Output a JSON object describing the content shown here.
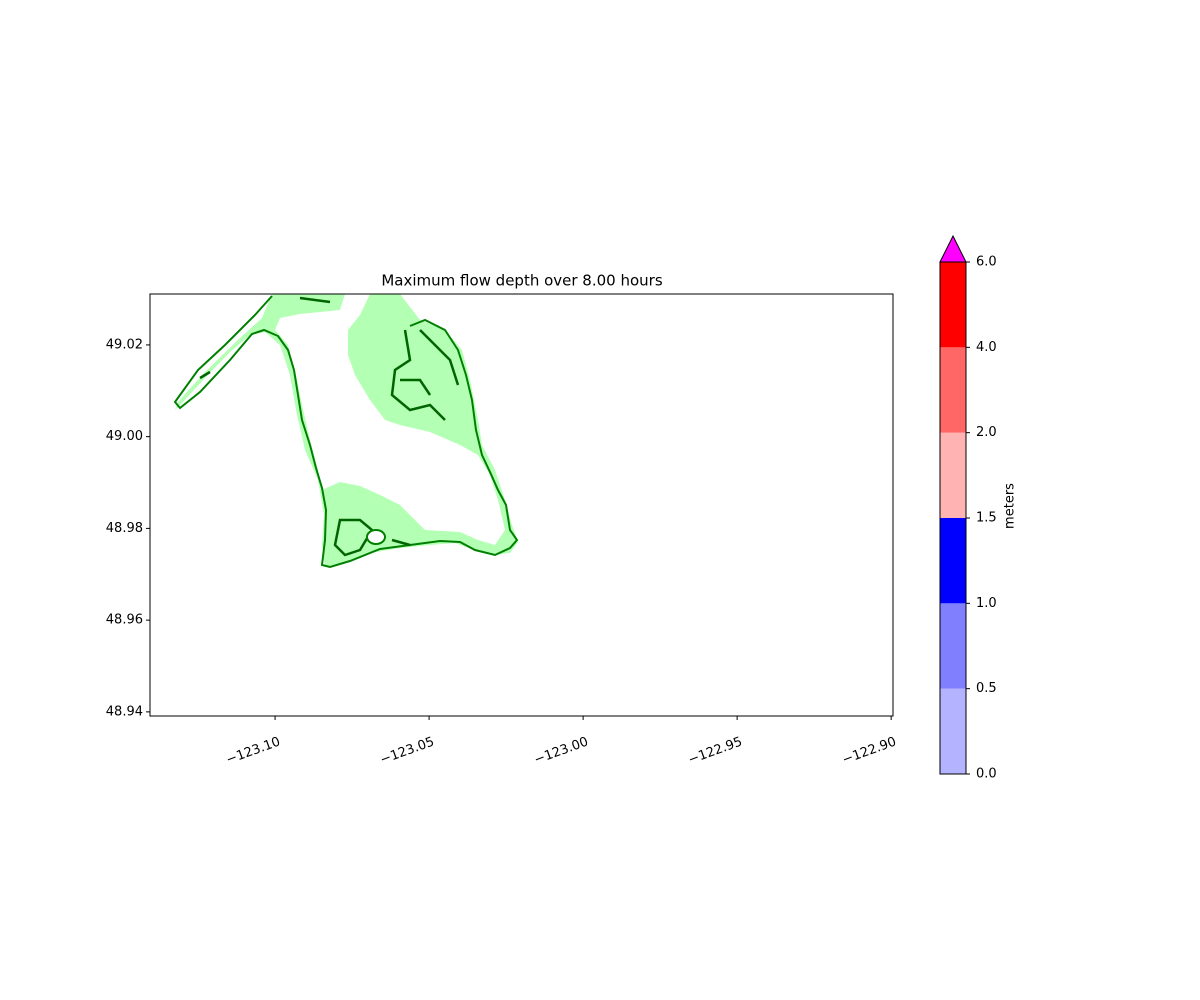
{
  "chart_data": {
    "type": "map",
    "title": "Maximum flow depth over 8.00 hours",
    "xlim": [
      -123.1406,
      -122.8994
    ],
    "ylim": [
      48.9391,
      49.0311
    ],
    "xticks": [
      {
        "value": -123.1,
        "label": "−123.10"
      },
      {
        "value": -123.05,
        "label": "−123.05"
      },
      {
        "value": -123.0,
        "label": "−123.00"
      },
      {
        "value": -122.95,
        "label": "−122.95"
      },
      {
        "value": -122.9,
        "label": "−122.90"
      }
    ],
    "yticks": [
      48.94,
      48.96,
      48.98,
      {
        "value": 49.0,
        "label": "49.00"
      },
      49.02
    ],
    "colorbar": {
      "label": "meters",
      "ticks": [
        {
          "value": 0,
          "label": "0.0"
        },
        {
          "value": 0.5,
          "label": "0.5"
        },
        {
          "value": 1,
          "label": "1.0"
        },
        {
          "value": 1.5,
          "label": "1.5"
        },
        {
          "value": 2,
          "label": "2.0"
        },
        {
          "value": 4,
          "label": "4.0"
        },
        {
          "value": 6,
          "label": "6.0"
        }
      ],
      "colors": [
        "#b3b3ff",
        "#8080ff",
        "#0000ff",
        "#ffb3b3",
        "#ff6666",
        "#ff0000"
      ],
      "extend_color": "#ff00ff"
    }
  }
}
